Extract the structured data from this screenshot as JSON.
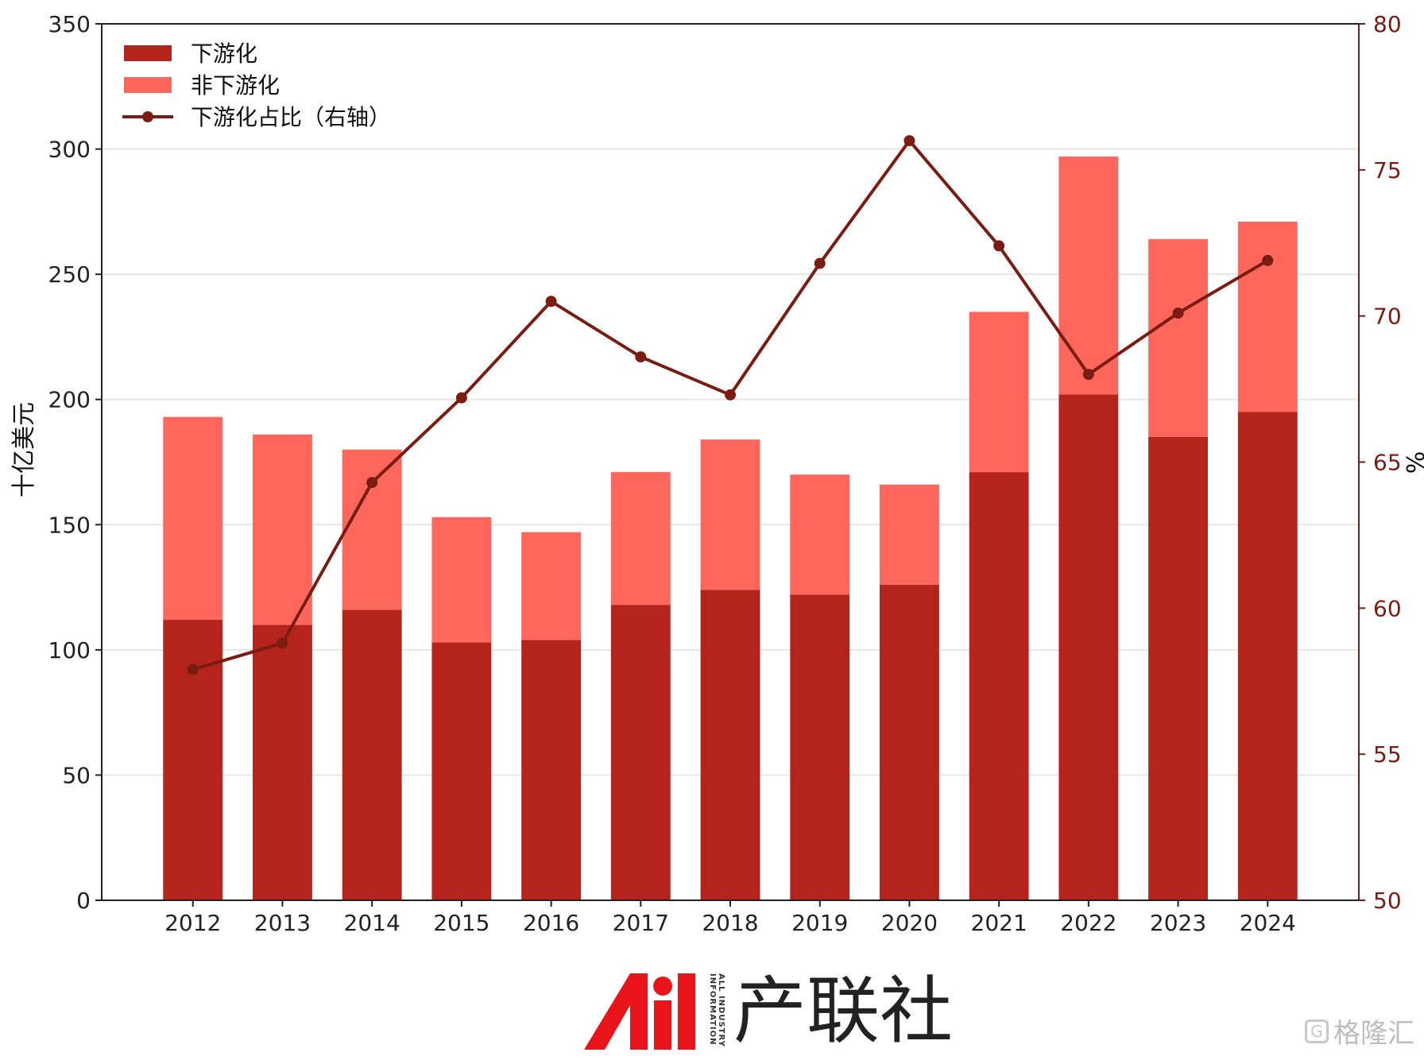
{
  "chart_data": {
    "type": "bar",
    "stacked": true,
    "categories": [
      "2012",
      "2013",
      "2014",
      "2015",
      "2016",
      "2017",
      "2018",
      "2019",
      "2020",
      "2021",
      "2022",
      "2023",
      "2024"
    ],
    "series": [
      {
        "name": "下游化",
        "type": "bar",
        "axis": "left",
        "color": "#b5231d",
        "values": [
          112,
          110,
          116,
          103,
          104,
          118,
          124,
          122,
          126,
          171,
          202,
          185,
          195
        ]
      },
      {
        "name": "非下游化",
        "type": "bar",
        "axis": "left",
        "color": "#ff675c",
        "values": [
          81,
          76,
          64,
          50,
          43,
          53,
          60,
          48,
          40,
          64,
          95,
          79,
          76
        ]
      },
      {
        "name": "下游化占比（右轴）",
        "type": "line",
        "axis": "right",
        "color": "#7a1c12",
        "values": [
          57.9,
          58.8,
          64.3,
          67.2,
          70.5,
          68.6,
          67.3,
          71.8,
          76.0,
          72.4,
          68.0,
          70.1,
          71.9
        ]
      }
    ],
    "ylabel": "十亿美元",
    "ylim": [
      0,
      350
    ],
    "yticks": [
      "0",
      "50",
      "100",
      "150",
      "200",
      "250",
      "300",
      "350"
    ],
    "y2label": "%",
    "y2lim": [
      50,
      80
    ],
    "y2ticks": [
      "50",
      "55",
      "60",
      "65",
      "70",
      "75",
      "80"
    ],
    "grid": "horizontal",
    "legend": "top-left"
  },
  "brand": {
    "name": "产联社",
    "tag": "ALL INDUSTRY INFORMATION",
    "logo_text": "Ai"
  },
  "watermark": {
    "text": "格隆汇",
    "icon": "G"
  }
}
